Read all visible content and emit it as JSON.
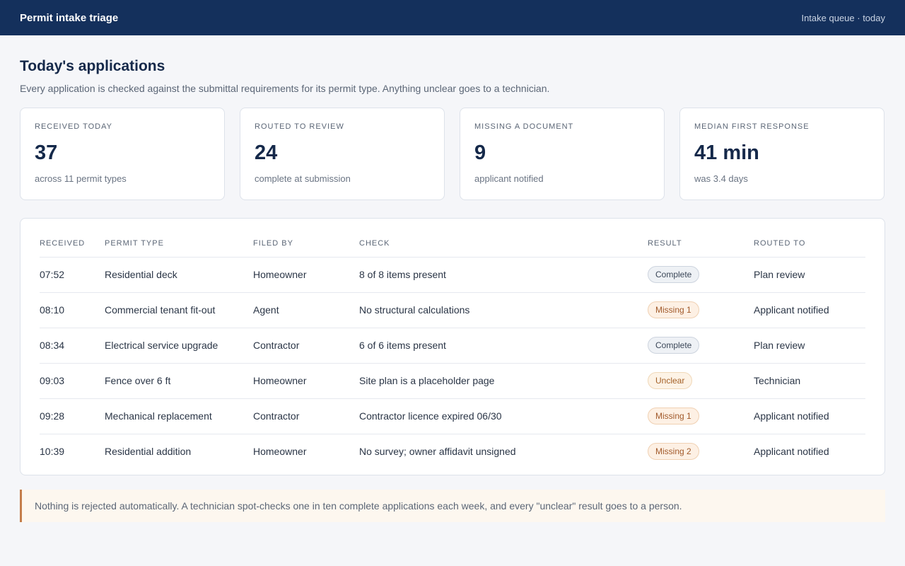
{
  "header": {
    "app_title": "Permit intake triage",
    "queue_label": "Intake queue · today"
  },
  "page": {
    "title": "Today's applications",
    "subtitle": "Every application is checked against the submittal requirements for its permit type. Anything unclear goes to a technician."
  },
  "stats": [
    {
      "label": "RECEIVED TODAY",
      "value": "37",
      "note": "across 11 permit types"
    },
    {
      "label": "ROUTED TO REVIEW",
      "value": "24",
      "note": "complete at submission"
    },
    {
      "label": "MISSING A DOCUMENT",
      "value": "9",
      "note": "applicant notified"
    },
    {
      "label": "MEDIAN FIRST RESPONSE",
      "value": "41 min",
      "note": "was 3.4 days"
    }
  ],
  "table": {
    "columns": [
      "RECEIVED",
      "PERMIT TYPE",
      "FILED BY",
      "CHECK",
      "RESULT",
      "ROUTED TO"
    ],
    "rows": [
      {
        "received": "07:52",
        "type": "Residential deck",
        "filed_by": "Homeowner",
        "check": "8 of 8 items present",
        "result": "Complete",
        "result_kind": "complete",
        "routed_to": "Plan review"
      },
      {
        "received": "08:10",
        "type": "Commercial tenant fit-out",
        "filed_by": "Agent",
        "check": "No structural calculations",
        "result": "Missing 1",
        "result_kind": "missing",
        "routed_to": "Applicant notified"
      },
      {
        "received": "08:34",
        "type": "Electrical service upgrade",
        "filed_by": "Contractor",
        "check": "6 of 6 items present",
        "result": "Complete",
        "result_kind": "complete",
        "routed_to": "Plan review"
      },
      {
        "received": "09:03",
        "type": "Fence over 6 ft",
        "filed_by": "Homeowner",
        "check": "Site plan is a placeholder page",
        "result": "Unclear",
        "result_kind": "unclear",
        "routed_to": "Technician"
      },
      {
        "received": "09:28",
        "type": "Mechanical replacement",
        "filed_by": "Contractor",
        "check": "Contractor licence expired 06/30",
        "result": "Missing 1",
        "result_kind": "missing",
        "routed_to": "Applicant notified"
      },
      {
        "received": "10:39",
        "type": "Residential addition",
        "filed_by": "Homeowner",
        "check": "No survey; owner affidavit unsigned",
        "result": "Missing 2",
        "result_kind": "missing",
        "routed_to": "Applicant notified"
      }
    ]
  },
  "notice": {
    "text": "Nothing is rejected automatically. A technician spot-checks one in ten complete applications each week, and every \"unclear\" result goes to a person."
  },
  "colors": {
    "header_bg": "#14305c",
    "accent_border": "#c47d4a",
    "complete_badge": "#eef1f5",
    "missing_badge": "#fdf0e4",
    "unclear_badge": "#fdf3e6"
  }
}
